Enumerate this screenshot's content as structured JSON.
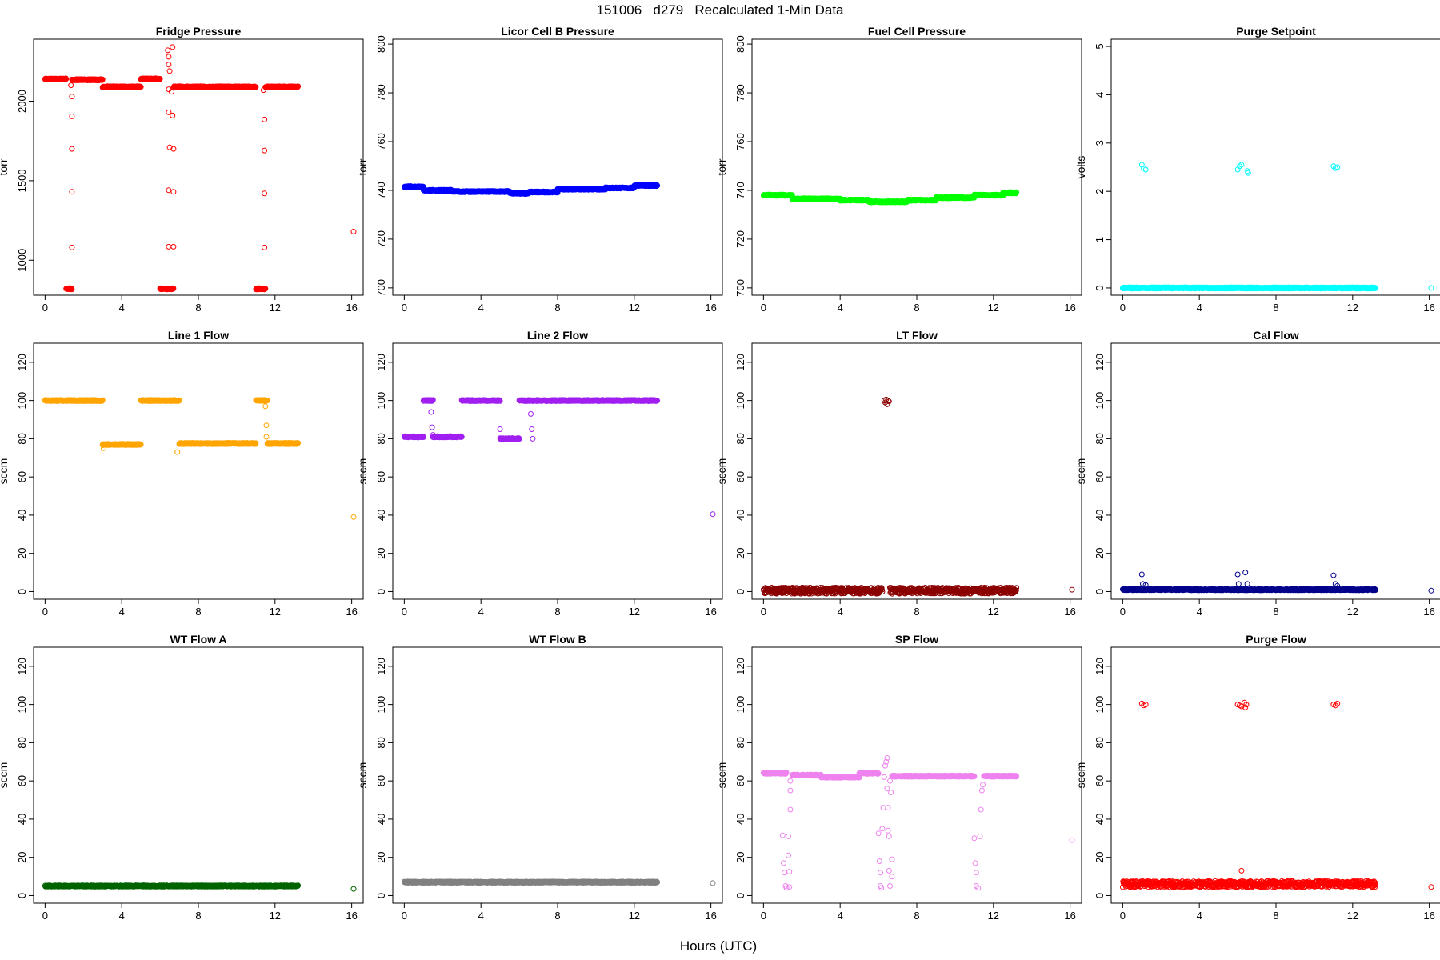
{
  "figure": {
    "title": "151006   d279   Recalculated 1-Min Data",
    "xlabel": "Hours (UTC)"
  },
  "chart_data": [
    {
      "type": "scatter",
      "title": "Fridge Pressure",
      "ylabel": "torr",
      "xlim": [
        -0.6,
        16.6
      ],
      "ylim": [
        780,
        2390
      ],
      "xticks": [
        0,
        4,
        8,
        12,
        16
      ],
      "yticks": [
        1000,
        1500,
        2000
      ],
      "color": "#ff0000",
      "series": [
        {
          "segments": [
            [
              0,
              1.1,
              2140
            ],
            [
              1.1,
              1.4,
              820
            ],
            [
              1.4,
              3.0,
              2135
            ],
            [
              3.0,
              5.0,
              2090
            ],
            [
              5.0,
              6.0,
              2140
            ],
            [
              6.0,
              6.7,
              820
            ],
            [
              6.7,
              11.0,
              2090
            ],
            [
              11.0,
              11.5,
              820
            ],
            [
              11.5,
              13.2,
              2090
            ]
          ],
          "points": [
            [
              1.35,
              2100
            ],
            [
              1.4,
              2030
            ],
            [
              1.4,
              1905
            ],
            [
              1.4,
              1700
            ],
            [
              1.4,
              1430
            ],
            [
              1.4,
              1080
            ],
            [
              6.4,
              2320
            ],
            [
              6.45,
              2280
            ],
            [
              6.45,
              2230
            ],
            [
              6.5,
              2190
            ],
            [
              6.45,
              2075
            ],
            [
              6.45,
              1930
            ],
            [
              6.5,
              1710
            ],
            [
              6.45,
              1440
            ],
            [
              6.45,
              1085
            ],
            [
              6.65,
              2340
            ],
            [
              6.6,
              2060
            ],
            [
              6.65,
              1910
            ],
            [
              6.7,
              1700
            ],
            [
              6.7,
              1430
            ],
            [
              6.7,
              1085
            ],
            [
              11.4,
              2070
            ],
            [
              11.45,
              1885
            ],
            [
              11.45,
              1690
            ],
            [
              11.45,
              1420
            ],
            [
              11.45,
              1080
            ],
            [
              16.1,
              1180
            ]
          ]
        }
      ]
    },
    {
      "type": "scatter",
      "title": "Licor Cell B Pressure",
      "ylabel": "torr",
      "xlim": [
        -0.6,
        16.6
      ],
      "ylim": [
        697,
        802
      ],
      "xticks": [
        0,
        4,
        8,
        12,
        16
      ],
      "yticks": [
        700,
        720,
        740,
        760,
        780,
        800
      ],
      "color": "#0000ff",
      "series": [
        {
          "segments": [
            [
              0,
              1.0,
              741.5
            ],
            [
              1.0,
              2.5,
              740
            ],
            [
              2.5,
              5.5,
              739.5
            ],
            [
              5.5,
              6.5,
              738.8
            ],
            [
              6.5,
              8.0,
              739.3
            ],
            [
              8.0,
              10.5,
              740.5
            ],
            [
              10.5,
              12.0,
              741
            ],
            [
              12.0,
              13.2,
              742
            ]
          ],
          "points": []
        }
      ]
    },
    {
      "type": "scatter",
      "title": "Fuel Cell Pressure",
      "ylabel": "torr",
      "xlim": [
        -0.6,
        16.6
      ],
      "ylim": [
        697,
        802
      ],
      "xticks": [
        0,
        4,
        8,
        12,
        16
      ],
      "yticks": [
        700,
        720,
        740,
        760,
        780,
        800
      ],
      "color": "#00ff00",
      "series": [
        {
          "segments": [
            [
              0,
              1.5,
              738
            ],
            [
              1.5,
              4.0,
              736.5
            ],
            [
              4.0,
              5.5,
              736
            ],
            [
              5.5,
              7.5,
              735.3
            ],
            [
              7.5,
              9.0,
              736
            ],
            [
              9.0,
              11.0,
              737
            ],
            [
              11.0,
              12.5,
              738
            ],
            [
              12.5,
              13.2,
              739
            ]
          ],
          "points": []
        }
      ]
    },
    {
      "type": "scatter",
      "title": "Purge Setpoint",
      "ylabel": "volts",
      "xlim": [
        -0.6,
        16.6
      ],
      "ylim": [
        -0.15,
        5.15
      ],
      "xticks": [
        0,
        4,
        8,
        12,
        16
      ],
      "yticks": [
        0,
        1,
        2,
        3,
        4,
        5
      ],
      "color": "#00ffff",
      "series": [
        {
          "segments": [
            [
              0,
              13.2,
              0
            ]
          ],
          "points": [
            [
              1.0,
              2.55
            ],
            [
              1.1,
              2.48
            ],
            [
              1.2,
              2.45
            ],
            [
              6.0,
              2.45
            ],
            [
              6.1,
              2.52
            ],
            [
              6.2,
              2.55
            ],
            [
              6.5,
              2.42
            ],
            [
              6.55,
              2.38
            ],
            [
              11.0,
              2.52
            ],
            [
              11.1,
              2.48
            ],
            [
              11.2,
              2.5
            ],
            [
              16.1,
              0
            ]
          ]
        }
      ]
    },
    {
      "type": "scatter",
      "title": "Line 1 Flow",
      "ylabel": "sccm",
      "xlim": [
        -0.6,
        16.6
      ],
      "ylim": [
        -4,
        130
      ],
      "xticks": [
        0,
        4,
        8,
        12,
        16
      ],
      "yticks": [
        0,
        20,
        40,
        60,
        80,
        100,
        120
      ],
      "color": "#ffa500",
      "series": [
        {
          "segments": [
            [
              0,
              3.0,
              100
            ],
            [
              3.0,
              5.0,
              77
            ],
            [
              5.0,
              7.0,
              100
            ],
            [
              7.0,
              11.0,
              77.5
            ],
            [
              11.0,
              11.6,
              100
            ],
            [
              11.6,
              13.2,
              77.5
            ]
          ],
          "points": [
            [
              3.05,
              75
            ],
            [
              6.9,
              73
            ],
            [
              11.5,
              97
            ],
            [
              11.55,
              87
            ],
            [
              11.55,
              81
            ],
            [
              16.1,
              39
            ]
          ]
        }
      ]
    },
    {
      "type": "scatter",
      "title": "Line 2 Flow",
      "ylabel": "sccm",
      "xlim": [
        -0.6,
        16.6
      ],
      "ylim": [
        -4,
        130
      ],
      "xticks": [
        0,
        4,
        8,
        12,
        16
      ],
      "yticks": [
        0,
        20,
        40,
        60,
        80,
        100,
        120
      ],
      "color": "#a020f0",
      "series": [
        {
          "segments": [
            [
              0,
              1.0,
              81
            ],
            [
              1.0,
              1.5,
              100
            ],
            [
              1.5,
              3.0,
              81
            ],
            [
              3.0,
              5.0,
              100
            ],
            [
              5.0,
              6.0,
              80
            ],
            [
              6.0,
              13.2,
              100
            ]
          ],
          "points": [
            [
              1.4,
              94
            ],
            [
              1.45,
              86
            ],
            [
              1.5,
              82
            ],
            [
              5.0,
              85
            ],
            [
              6.6,
              93
            ],
            [
              6.65,
              85
            ],
            [
              6.7,
              80
            ],
            [
              16.1,
              40.5
            ]
          ]
        }
      ]
    },
    {
      "type": "scatter",
      "title": "LT Flow",
      "ylabel": "sccm",
      "xlim": [
        -0.6,
        16.6
      ],
      "ylim": [
        -4,
        130
      ],
      "xticks": [
        0,
        4,
        8,
        12,
        16
      ],
      "yticks": [
        0,
        20,
        40,
        60,
        80,
        100,
        120
      ],
      "color": "#8b0000",
      "series": [
        {
          "segments": [
            [
              0,
              6.2,
              0.5
            ],
            [
              6.6,
              13.2,
              0.5
            ]
          ],
          "points": [
            [
              6.3,
              100
            ],
            [
              6.35,
              99
            ],
            [
              6.4,
              100.5
            ],
            [
              6.45,
              98
            ],
            [
              6.5,
              100
            ],
            [
              6.55,
              99.5
            ],
            [
              16.1,
              1
            ]
          ]
        }
      ]
    },
    {
      "type": "scatter",
      "title": "Cal Flow",
      "ylabel": "sccm",
      "xlim": [
        -0.6,
        16.6
      ],
      "ylim": [
        -4,
        130
      ],
      "xticks": [
        0,
        4,
        8,
        12,
        16
      ],
      "yticks": [
        0,
        20,
        40,
        60,
        80,
        100,
        120
      ],
      "color": "#00008b",
      "series": [
        {
          "segments": [
            [
              0,
              13.2,
              1
            ]
          ],
          "points": [
            [
              1.0,
              9
            ],
            [
              1.05,
              4
            ],
            [
              1.2,
              3.5
            ],
            [
              6.0,
              9
            ],
            [
              6.05,
              4
            ],
            [
              6.4,
              10
            ],
            [
              6.5,
              4
            ],
            [
              11.0,
              8.5
            ],
            [
              11.1,
              4
            ],
            [
              11.2,
              3
            ],
            [
              16.1,
              0.5
            ]
          ]
        }
      ]
    },
    {
      "type": "scatter",
      "title": "WT Flow A",
      "ylabel": "sccm",
      "xlim": [
        -0.6,
        16.6
      ],
      "ylim": [
        -4,
        130
      ],
      "xticks": [
        0,
        4,
        8,
        12,
        16
      ],
      "yticks": [
        0,
        20,
        40,
        60,
        80,
        100,
        120
      ],
      "color": "#006400",
      "series": [
        {
          "segments": [
            [
              0,
              13.2,
              5
            ]
          ],
          "points": [
            [
              16.1,
              3.5
            ]
          ]
        }
      ]
    },
    {
      "type": "scatter",
      "title": "WT Flow B",
      "ylabel": "sccm",
      "xlim": [
        -0.6,
        16.6
      ],
      "ylim": [
        -4,
        130
      ],
      "xticks": [
        0,
        4,
        8,
        12,
        16
      ],
      "yticks": [
        0,
        20,
        40,
        60,
        80,
        100,
        120
      ],
      "color": "#808080",
      "series": [
        {
          "segments": [
            [
              0,
              13.2,
              7
            ]
          ],
          "points": [
            [
              16.1,
              6.5
            ]
          ]
        }
      ]
    },
    {
      "type": "scatter",
      "title": "SP Flow",
      "ylabel": "sccm",
      "xlim": [
        -0.6,
        16.6
      ],
      "ylim": [
        -4,
        130
      ],
      "xticks": [
        0,
        4,
        8,
        12,
        16
      ],
      "yticks": [
        0,
        20,
        40,
        60,
        80,
        100,
        120
      ],
      "color": "#ee82ee",
      "series": [
        {
          "segments": [
            [
              0,
              1.2,
              64
            ],
            [
              1.5,
              3.0,
              63
            ],
            [
              3.0,
              5.0,
              62
            ],
            [
              5.0,
              6.0,
              64
            ],
            [
              6.7,
              11.0,
              62.5
            ],
            [
              11.5,
              13.2,
              62.5
            ]
          ],
          "points": [
            [
              1.0,
              31.5
            ],
            [
              1.05,
              17
            ],
            [
              1.1,
              12
            ],
            [
              1.15,
              5
            ],
            [
              1.2,
              4
            ],
            [
              1.3,
              31
            ],
            [
              1.35,
              4.5
            ],
            [
              1.3,
              21
            ],
            [
              1.35,
              12.5
            ],
            [
              1.4,
              60
            ],
            [
              1.4,
              55
            ],
            [
              1.4,
              45
            ],
            [
              6.0,
              32.5
            ],
            [
              6.05,
              18
            ],
            [
              6.1,
              12
            ],
            [
              6.1,
              5
            ],
            [
              6.15,
              4
            ],
            [
              6.2,
              35
            ],
            [
              6.25,
              46
            ],
            [
              6.3,
              62
            ],
            [
              6.35,
              68
            ],
            [
              6.4,
              70
            ],
            [
              6.45,
              72
            ],
            [
              6.45,
              56
            ],
            [
              6.5,
              46
            ],
            [
              6.5,
              34
            ],
            [
              6.55,
              31
            ],
            [
              6.55,
              13
            ],
            [
              6.6,
              5
            ],
            [
              6.6,
              60
            ],
            [
              6.65,
              54
            ],
            [
              6.7,
              19
            ],
            [
              6.7,
              10
            ],
            [
              11.0,
              30
            ],
            [
              11.05,
              17
            ],
            [
              11.1,
              12
            ],
            [
              11.1,
              5
            ],
            [
              11.2,
              4
            ],
            [
              11.3,
              31
            ],
            [
              11.35,
              45
            ],
            [
              11.4,
              55
            ],
            [
              11.45,
              58
            ],
            [
              16.1,
              29
            ]
          ]
        }
      ]
    },
    {
      "type": "scatter",
      "title": "Purge Flow",
      "ylabel": "sccm",
      "xlim": [
        -0.6,
        16.6
      ],
      "ylim": [
        -4,
        130
      ],
      "xticks": [
        0,
        4,
        8,
        12,
        16
      ],
      "yticks": [
        0,
        20,
        40,
        60,
        80,
        100,
        120
      ],
      "color": "#ff0000",
      "series": [
        {
          "segments": [
            [
              0,
              13.2,
              6
            ]
          ],
          "points": [
            [
              1.0,
              100.5
            ],
            [
              1.1,
              99.5
            ],
            [
              1.2,
              100
            ],
            [
              6.0,
              100
            ],
            [
              6.1,
              99.5
            ],
            [
              6.2,
              99
            ],
            [
              6.35,
              101
            ],
            [
              6.4,
              98.5
            ],
            [
              6.45,
              100
            ],
            [
              11.0,
              100
            ],
            [
              11.1,
              99.5
            ],
            [
              11.2,
              100.5
            ],
            [
              6.2,
              13
            ],
            [
              16.1,
              4.5
            ]
          ]
        }
      ]
    }
  ]
}
